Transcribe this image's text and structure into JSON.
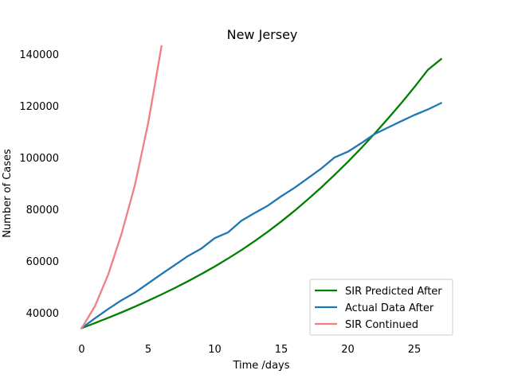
{
  "chart_data": {
    "type": "line",
    "title": "New Jersey",
    "xlabel": "Time /days",
    "ylabel": "Number of Cases",
    "xlim": [
      -1.35,
      28.35
    ],
    "ylim": [
      30700,
      143000
    ],
    "xticks": [
      0,
      5,
      10,
      15,
      20,
      25
    ],
    "yticks": [
      40000,
      60000,
      80000,
      100000,
      120000,
      140000
    ],
    "grid": false,
    "legend_position": "lower-right",
    "series": [
      {
        "name": "SIR Predicted After",
        "color": "#008000",
        "x": [
          0,
          1,
          2,
          3,
          4,
          5,
          6,
          7,
          8,
          9,
          10,
          11,
          12,
          13,
          14,
          15,
          16,
          17,
          18,
          19,
          20,
          21,
          22,
          23,
          24,
          25,
          26,
          27
        ],
        "values": [
          34000,
          35950,
          37980,
          40090,
          42300,
          44600,
          47000,
          49500,
          52130,
          54900,
          57800,
          60900,
          64150,
          67650,
          71350,
          75250,
          79400,
          83800,
          88400,
          93250,
          98300,
          103600,
          109150,
          114950,
          120900,
          127200,
          133800,
          138000
        ]
      },
      {
        "name": "Actual Data After",
        "color": "#1f77b4",
        "x": [
          0,
          1,
          2,
          3,
          4,
          5,
          6,
          7,
          8,
          9,
          10,
          11,
          12,
          13,
          14,
          15,
          16,
          17,
          18,
          19,
          20,
          21,
          22,
          23,
          24,
          25,
          26,
          27
        ],
        "values": [
          34000,
          37800,
          41400,
          44800,
          47700,
          51300,
          54900,
          58400,
          61900,
          64800,
          68800,
          71000,
          75500,
          78500,
          81400,
          85000,
          88300,
          92000,
          95700,
          100000,
          102200,
          105500,
          109000,
          111500,
          114000,
          116400,
          118500,
          121000
        ]
      },
      {
        "name": "SIR Continued",
        "color": "#f08080",
        "x": [
          0,
          1,
          2,
          3,
          4,
          5,
          6
        ],
        "values": [
          34000,
          42500,
          54800,
          70500,
          89300,
          113300,
          143000
        ]
      }
    ]
  }
}
